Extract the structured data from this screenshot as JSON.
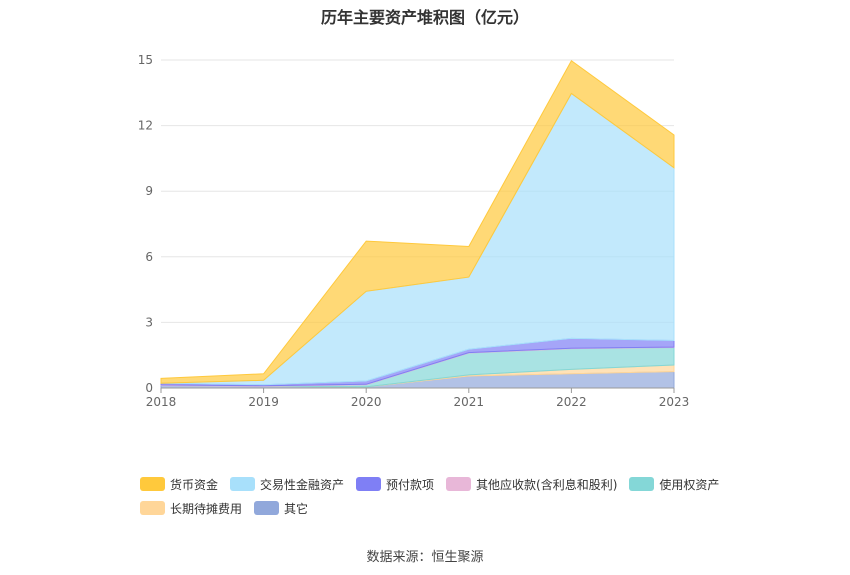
{
  "chart_data": {
    "type": "area",
    "stacked": true,
    "title": "历年主要资产堆积图（亿元）",
    "x": [
      "2018",
      "2019",
      "2020",
      "2021",
      "2022",
      "2023"
    ],
    "ylim": [
      0,
      15
    ],
    "yticks": [
      "0",
      "3",
      "6",
      "9",
      "12",
      "15"
    ],
    "grid": true,
    "legend_position": "bottom",
    "series": [
      {
        "name": "其它",
        "color": "#91a8db",
        "values": [
          0.12,
          0.08,
          0.05,
          0.55,
          0.65,
          0.75
        ]
      },
      {
        "name": "长期待摊费用",
        "color": "#ffd699",
        "values": [
          0.0,
          0.0,
          0.0,
          0.05,
          0.2,
          0.3
        ]
      },
      {
        "name": "使用权资产",
        "color": "#84d7d7",
        "values": [
          0.0,
          0.0,
          0.1,
          1.0,
          0.95,
          0.8
        ]
      },
      {
        "name": "其他应收款(含利息和股利)",
        "color": "#e8b7d8",
        "values": [
          0.02,
          0.02,
          0.02,
          0.02,
          0.02,
          0.02
        ]
      },
      {
        "name": "预付款项",
        "color": "#7f7ff5",
        "values": [
          0.08,
          0.05,
          0.15,
          0.15,
          0.45,
          0.3
        ]
      },
      {
        "name": "交易性金融资产",
        "color": "#a8e0fb",
        "values": [
          0.0,
          0.2,
          4.1,
          3.3,
          11.2,
          7.9
        ]
      },
      {
        "name": "货币资金",
        "color": "#ffc93c",
        "values": [
          0.22,
          0.3,
          2.3,
          1.4,
          1.5,
          1.5
        ]
      }
    ],
    "legend_order": [
      "货币资金",
      "交易性金融资产",
      "预付款项",
      "其他应收款(含利息和股利)",
      "使用权资产",
      "长期待摊费用",
      "其它"
    ]
  },
  "source_text": "数据来源：恒生聚源"
}
